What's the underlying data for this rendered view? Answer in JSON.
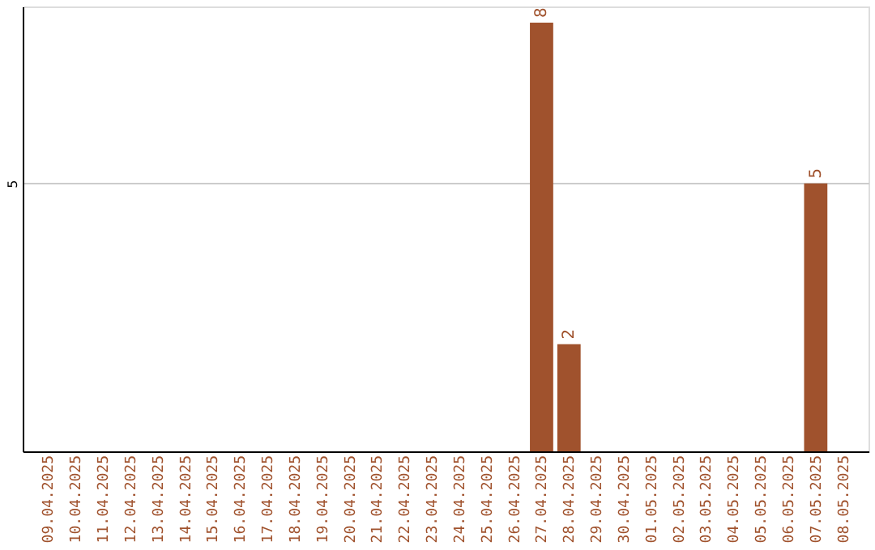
{
  "chart_data": {
    "type": "bar",
    "categories": [
      "09.04.2025",
      "10.04.2025",
      "11.04.2025",
      "12.04.2025",
      "13.04.2025",
      "14.04.2025",
      "15.04.2025",
      "16.04.2025",
      "17.04.2025",
      "18.04.2025",
      "19.04.2025",
      "20.04.2025",
      "21.04.2025",
      "22.04.2025",
      "23.04.2025",
      "24.04.2025",
      "25.04.2025",
      "26.04.2025",
      "27.04.2025",
      "28.04.2025",
      "29.04.2025",
      "30.04.2025",
      "01.05.2025",
      "02.05.2025",
      "03.05.2025",
      "04.05.2025",
      "05.05.2025",
      "06.05.2025",
      "07.05.2025",
      "08.05.2025"
    ],
    "values": [
      null,
      null,
      null,
      null,
      null,
      null,
      null,
      null,
      null,
      null,
      null,
      null,
      null,
      null,
      null,
      null,
      null,
      null,
      8,
      2,
      null,
      null,
      null,
      null,
      null,
      null,
      null,
      null,
      5,
      null
    ],
    "ylim": [
      0,
      8.3
    ],
    "yticks": [
      5
    ],
    "grid": "y",
    "color": "#a0522d",
    "data_labels": true
  }
}
